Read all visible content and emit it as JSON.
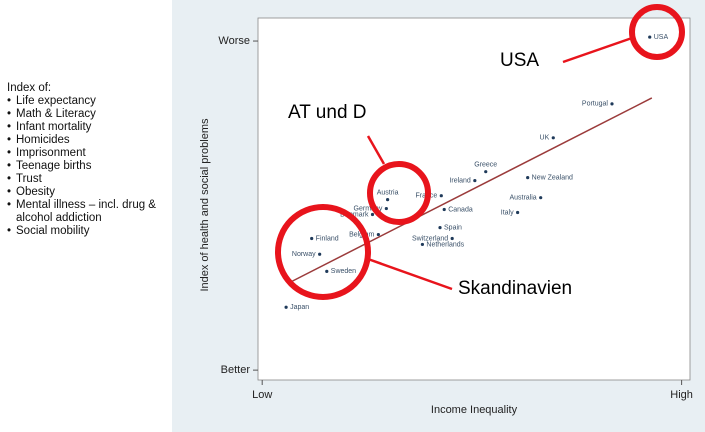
{
  "chart_data": {
    "type": "scatter",
    "side_title": "Index of:",
    "side_items": [
      "Life expectancy",
      "Math & Literacy",
      "Infant mortality",
      "Homicides",
      "Imprisonment",
      "Teenage births",
      "Trust",
      "Obesity",
      "Mental illness – incl. drug & alcohol addiction",
      "Social mobility"
    ],
    "xlabel": "Income Inequality",
    "ylabel": "Index of health and social problems",
    "xlim": [
      -0.1,
      10.2
    ],
    "ylim": [
      -0.3,
      10.7
    ],
    "xticks": [
      {
        "value": 0,
        "label": "Low"
      },
      {
        "value": 10,
        "label": "High"
      }
    ],
    "yticks": [
      {
        "value": 0,
        "label": "Better"
      },
      {
        "value": 10,
        "label": "Worse"
      }
    ],
    "point_color": "#1f3a5a",
    "labels": [
      "USA",
      "Portugal",
      "UK",
      "Greece",
      "New Zealand",
      "Ireland",
      "Australia",
      "Italy",
      "Austria",
      "Germany",
      "France",
      "Canada",
      "Denmark",
      "Spain",
      "Switzerland",
      "Belgium",
      "Netherlands",
      "Finland",
      "Norway",
      "Sweden",
      "Japan"
    ],
    "x": [
      9.24,
      8.34,
      6.94,
      5.33,
      6.33,
      5.07,
      6.64,
      6.09,
      2.99,
      2.96,
      4.27,
      4.34,
      2.63,
      4.24,
      4.53,
      2.77,
      3.82,
      1.18,
      1.37,
      1.54,
      0.57
    ],
    "y": [
      10.12,
      8.09,
      7.06,
      6.03,
      5.85,
      5.76,
      5.24,
      4.79,
      5.18,
      4.91,
      5.3,
      4.88,
      4.73,
      4.33,
      4.0,
      4.12,
      3.82,
      4.0,
      3.52,
      3.0,
      1.91
    ],
    "trend": {
      "color": "#9b3b3b",
      "x": [
        0.62,
        9.29
      ],
      "y": [
        2.64,
        8.27
      ]
    },
    "annotations": [
      "USA",
      "AT und D",
      "Skandinavien"
    ]
  }
}
